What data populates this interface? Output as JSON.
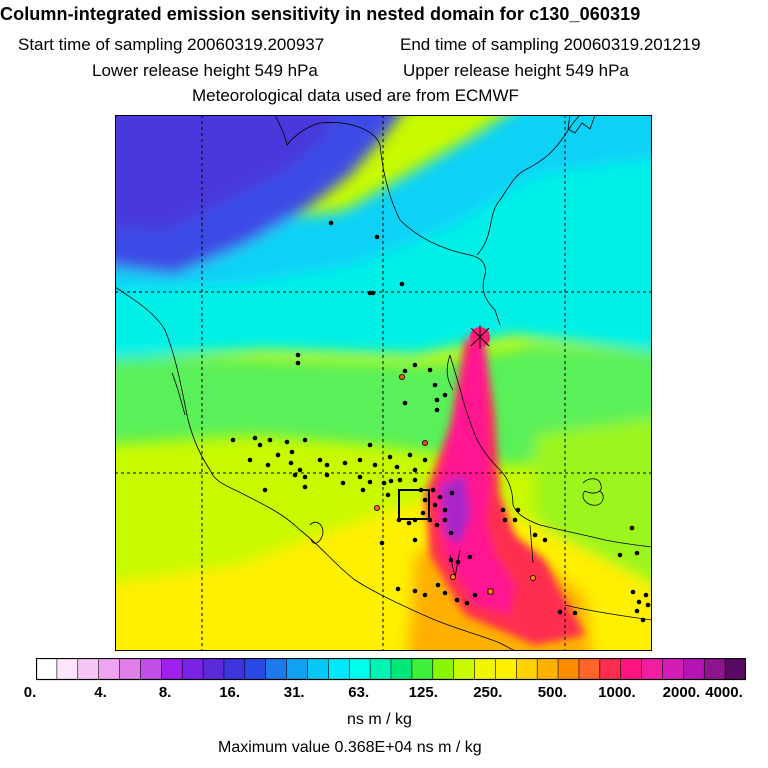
{
  "header": {
    "title": "Column-integrated emission sensitivity in nested domain for c130_060319",
    "start_time": "Start time of sampling 20060319.200937",
    "end_time": "End time of sampling 20060319.201219",
    "lower_height": "Lower release height  549 hPa",
    "upper_height": "Upper release height  549 hPa",
    "met_data": "Meteorological data used are from ECMWF"
  },
  "colorbar": {
    "colors": [
      "#ffffff",
      "#fde6fd",
      "#f6c6f6",
      "#f0a4f0",
      "#e07fe8",
      "#c050e8",
      "#a020f0",
      "#7a22e6",
      "#5a2ad8",
      "#3c34dc",
      "#2a4ae6",
      "#1e78ee",
      "#12a0f4",
      "#08c8f8",
      "#00e8fc",
      "#00ffea",
      "#00f5b4",
      "#00e87a",
      "#3cf03c",
      "#8cf500",
      "#c8fa00",
      "#f0f500",
      "#fff000",
      "#ffd200",
      "#ffb000",
      "#ff8c00",
      "#ff6428",
      "#ff2d50",
      "#ff1480",
      "#f01ea0",
      "#d21eb4",
      "#b414b4",
      "#8c148c",
      "#5a0a64"
    ],
    "tick_labels": [
      "0.",
      "4.",
      "8.",
      "16.",
      "31.",
      "63.",
      "125.",
      "250.",
      "500.",
      "1000.",
      "2000.",
      "4000."
    ],
    "unit": "ns m / kg"
  },
  "footer": {
    "max_value": "Maximum value  0.368E+04 ns m / kg"
  }
}
